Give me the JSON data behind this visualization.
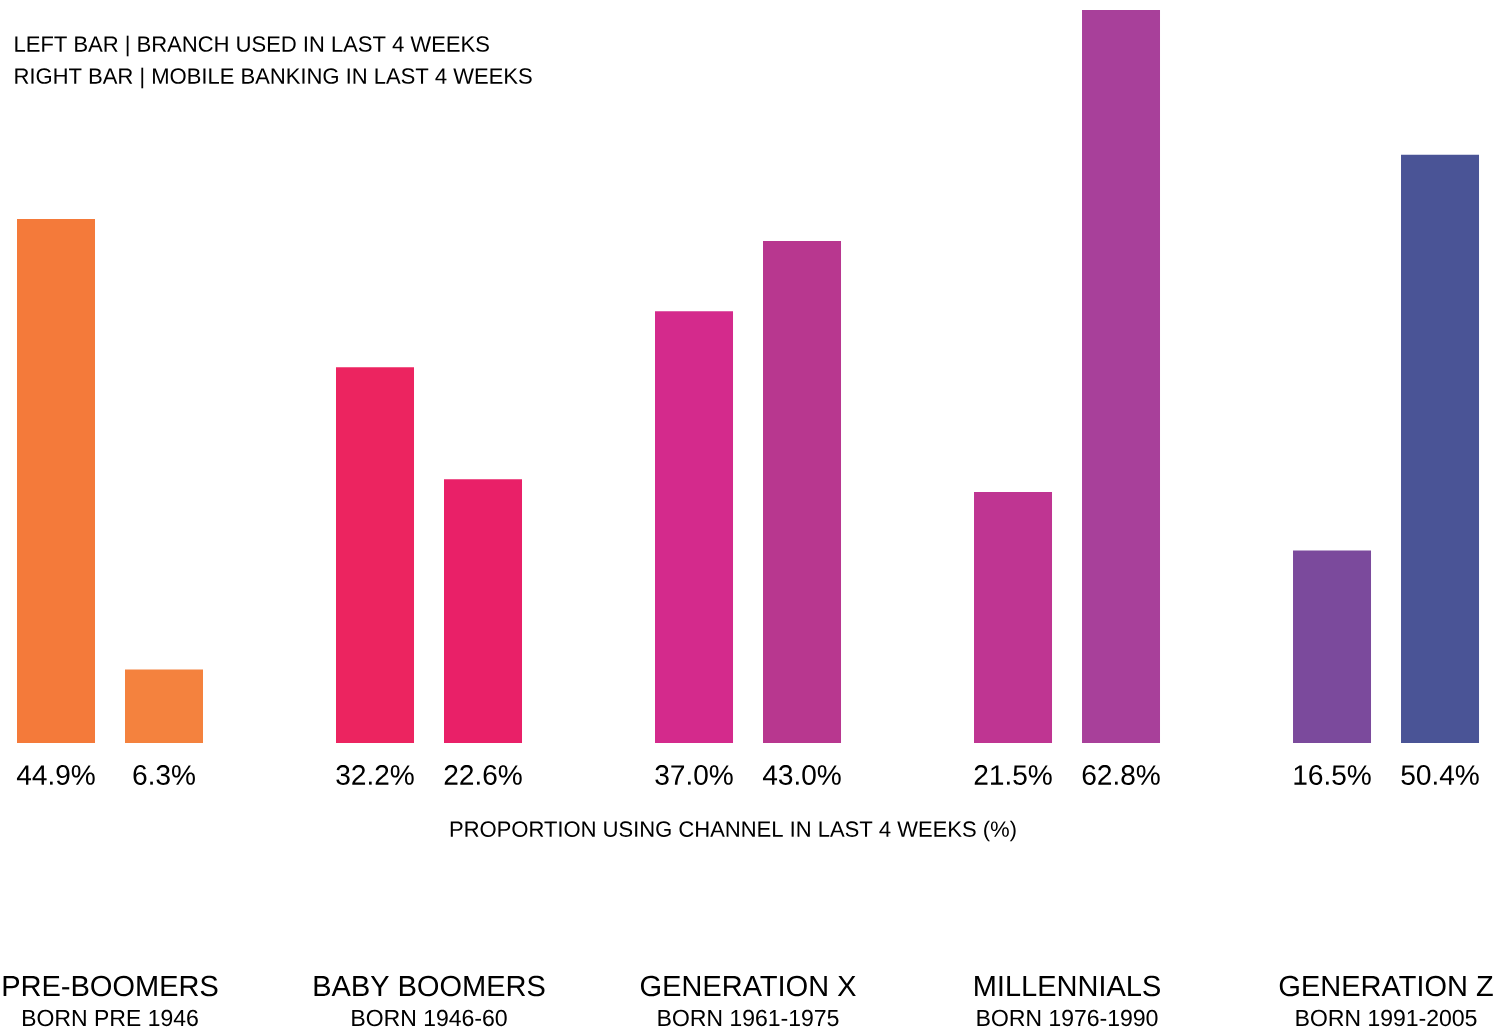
{
  "chart_data": {
    "type": "bar",
    "xlabel": "PROPORTION USING CHANNEL IN LAST 4 WEEKS (%)",
    "categories": [
      "PRE-BOOMERS",
      "BABY BOOMERS",
      "GENERATION X",
      "MILLENNIALS",
      "GENERATION Z"
    ],
    "series": [
      {
        "colors": [
          "#f47a3a",
          "#ec2460",
          "#d42a8c",
          "#bf3592",
          "#7b4a9c"
        ],
        "values": [
          44.9,
          32.2,
          37.0,
          21.5,
          16.5
        ],
        "value_labels": [
          "44.9%",
          "32.2%",
          "37.0%",
          "21.5%",
          "16.5%"
        ]
      },
      {
        "colors": [
          "#f4823e",
          "#e92068",
          "#b8378f",
          "#a8409a",
          "#4a5496"
        ],
        "values": [
          6.3,
          22.6,
          43.0,
          62.8,
          50.4
        ],
        "value_labels": [
          "6.3%",
          "22.6%",
          "43.0%",
          "62.8%",
          "50.4%"
        ]
      }
    ],
    "annotations": [
      "LEFT BAR | BRANCH USED IN LAST 4 WEEKS",
      "RIGHT BAR | MOBILE BANKING IN LAST 4 WEEKS",
      "BORN PRE 1946",
      "BORN 1946-60",
      "BORN 1961-1975",
      "BORN 1976-1990",
      "BORN 1991-2005"
    ]
  }
}
